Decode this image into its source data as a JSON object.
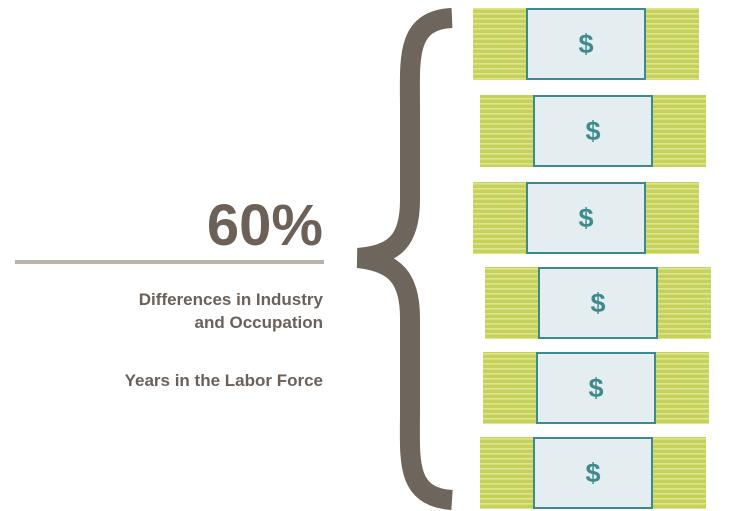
{
  "headline": "60%",
  "factors": [
    "Differences in Industry",
    "and Occupation",
    "Years in the Labor Force"
  ],
  "bills": [
    "$",
    "$",
    "$",
    "$",
    "$",
    "$"
  ]
}
